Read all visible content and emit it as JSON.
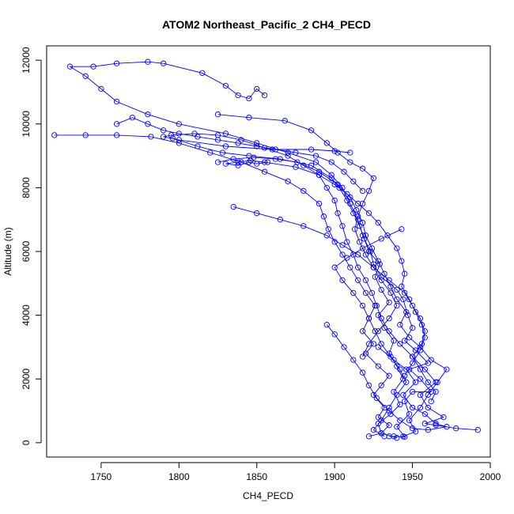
{
  "chart_data": {
    "type": "line",
    "title": "ATOM2 Northeast_Pacific_2 CH4_PECD",
    "xlabel": "CH4_PECD",
    "ylabel": "Altitude (m)",
    "xlim": [
      1715,
      2000
    ],
    "ylim": [
      -450,
      12450
    ],
    "xticks": [
      1750,
      1800,
      1850,
      1900,
      1950,
      2000
    ],
    "yticks": [
      0,
      2000,
      4000,
      6000,
      8000,
      10000,
      12000
    ],
    "grid": false,
    "legend": "none",
    "marker": "open-circle",
    "colors": {
      "series": "#0000ff",
      "axes": "#000000",
      "background": "#ffffff"
    },
    "series": [
      {
        "values": [
          [
            1935,
            200
          ],
          [
            1938,
            200
          ],
          [
            1945,
            180
          ],
          [
            1940,
            500
          ],
          [
            1948,
            900
          ],
          [
            1945,
            1300
          ],
          [
            1950,
            1600
          ],
          [
            1962,
            1600
          ],
          [
            1955,
            2000
          ],
          [
            1948,
            2300
          ],
          [
            1960,
            2500
          ],
          [
            1952,
            2900
          ],
          [
            1945,
            3200
          ],
          [
            1950,
            3600
          ],
          [
            1947,
            4000
          ],
          [
            1944,
            4500
          ],
          [
            1940,
            4800
          ],
          [
            1930,
            5200
          ],
          [
            1925,
            5600
          ],
          [
            1923,
            6000
          ],
          [
            1918,
            6500
          ],
          [
            1915,
            7000
          ],
          [
            1910,
            7500
          ],
          [
            1905,
            8000
          ],
          [
            1898,
            8400
          ],
          [
            1888,
            8800
          ],
          [
            1870,
            9100
          ],
          [
            1850,
            9400
          ],
          [
            1830,
            9700
          ],
          [
            1800,
            10000
          ],
          [
            1780,
            10300
          ],
          [
            1760,
            10700
          ],
          [
            1750,
            11100
          ],
          [
            1740,
            11500
          ],
          [
            1730,
            11800
          ],
          [
            1745,
            11800
          ],
          [
            1760,
            11900
          ],
          [
            1780,
            11950
          ],
          [
            1790,
            11900
          ],
          [
            1815,
            11600
          ],
          [
            1830,
            11200
          ],
          [
            1838,
            10900
          ],
          [
            1845,
            10800
          ],
          [
            1850,
            11100
          ],
          [
            1855,
            10900
          ]
        ]
      },
      {
        "values": [
          [
            1940,
            150
          ],
          [
            1930,
            300
          ],
          [
            1935,
            550
          ],
          [
            1928,
            800
          ],
          [
            1932,
            1100
          ],
          [
            1925,
            1500
          ],
          [
            1930,
            1800
          ],
          [
            1935,
            2100
          ],
          [
            1928,
            2400
          ],
          [
            1920,
            2800
          ],
          [
            1925,
            3100
          ],
          [
            1918,
            3500
          ],
          [
            1922,
            3900
          ],
          [
            1926,
            4300
          ],
          [
            1920,
            4700
          ],
          [
            1915,
            5100
          ],
          [
            1910,
            5500
          ],
          [
            1905,
            5900
          ],
          [
            1900,
            6300
          ],
          [
            1896,
            6700
          ],
          [
            1893,
            7100
          ],
          [
            1890,
            7500
          ],
          [
            1880,
            7900
          ],
          [
            1870,
            8200
          ],
          [
            1855,
            8500
          ],
          [
            1840,
            8800
          ],
          [
            1820,
            9100
          ],
          [
            1800,
            9400
          ],
          [
            1782,
            9600
          ],
          [
            1760,
            9650
          ],
          [
            1740,
            9650
          ],
          [
            1720,
            9650
          ]
        ]
      },
      {
        "values": [
          [
            1992,
            400
          ],
          [
            1978,
            450
          ],
          [
            1965,
            550
          ],
          [
            1958,
            600
          ],
          [
            1970,
            800
          ],
          [
            1960,
            1100
          ],
          [
            1955,
            1500
          ],
          [
            1965,
            1900
          ],
          [
            1958,
            2300
          ],
          [
            1950,
            2700
          ],
          [
            1942,
            3100
          ],
          [
            1935,
            3500
          ],
          [
            1930,
            3900
          ],
          [
            1927,
            4300
          ],
          [
            1924,
            4700
          ],
          [
            1920,
            5100
          ],
          [
            1915,
            5500
          ],
          [
            1912,
            5900
          ],
          [
            1908,
            6300
          ],
          [
            1905,
            6800
          ],
          [
            1902,
            7200
          ],
          [
            1900,
            7600
          ],
          [
            1895,
            8000
          ],
          [
            1890,
            8400
          ],
          [
            1880,
            8700
          ],
          [
            1870,
            9000
          ],
          [
            1855,
            9250
          ],
          [
            1840,
            9500
          ],
          [
            1825,
            9650
          ],
          [
            1810,
            9700
          ],
          [
            1795,
            9650
          ],
          [
            1790,
            9600
          ],
          [
            1800,
            9500
          ],
          [
            1830,
            9300
          ],
          [
            1860,
            9200
          ],
          [
            1885,
            9200
          ],
          [
            1900,
            9150
          ],
          [
            1910,
            9100
          ]
        ]
      },
      {
        "values": [
          [
            1922,
            200
          ],
          [
            1930,
            300
          ],
          [
            1928,
            600
          ],
          [
            1936,
            900
          ],
          [
            1942,
            1200
          ],
          [
            1938,
            1600
          ],
          [
            1944,
            2000
          ],
          [
            1940,
            2400
          ],
          [
            1935,
            2800
          ],
          [
            1938,
            3200
          ],
          [
            1932,
            3600
          ],
          [
            1928,
            4000
          ],
          [
            1935,
            4400
          ],
          [
            1930,
            4800
          ],
          [
            1926,
            5200
          ],
          [
            1929,
            5600
          ],
          [
            1922,
            6000
          ],
          [
            1919,
            6400
          ],
          [
            1916,
            6800
          ],
          [
            1912,
            7200
          ],
          [
            1908,
            7600
          ],
          [
            1903,
            8000
          ],
          [
            1898,
            8300
          ],
          [
            1885,
            8700
          ],
          [
            1865,
            8900
          ],
          [
            1845,
            9000
          ],
          [
            1828,
            9100
          ],
          [
            1812,
            9300
          ],
          [
            1796,
            9550
          ]
        ]
      },
      {
        "values": [
          [
            1944,
            200
          ],
          [
            1952,
            350
          ],
          [
            1948,
            700
          ],
          [
            1955,
            1100
          ],
          [
            1960,
            1500
          ],
          [
            1966,
            1900
          ],
          [
            1972,
            2300
          ],
          [
            1962,
            2600
          ],
          [
            1955,
            3000
          ],
          [
            1948,
            3300
          ],
          [
            1942,
            3700
          ],
          [
            1946,
            4100
          ],
          [
            1940,
            4500
          ],
          [
            1936,
            4900
          ],
          [
            1932,
            5300
          ],
          [
            1928,
            5700
          ],
          [
            1924,
            6100
          ],
          [
            1920,
            6500
          ],
          [
            1918,
            6900
          ],
          [
            1914,
            7300
          ],
          [
            1910,
            7700
          ],
          [
            1902,
            8100
          ],
          [
            1890,
            8500
          ],
          [
            1876,
            8800
          ],
          [
            1862,
            8900
          ],
          [
            1848,
            8950
          ],
          [
            1835,
            8900
          ],
          [
            1825,
            8800
          ]
        ]
      },
      {
        "values": [
          [
            1928,
            3000
          ],
          [
            1938,
            2600
          ],
          [
            1946,
            2300
          ],
          [
            1952,
            1900
          ],
          [
            1944,
            1500
          ],
          [
            1950,
            1100
          ],
          [
            1958,
            900
          ],
          [
            1965,
            600
          ],
          [
            1972,
            500
          ],
          [
            1960,
            400
          ],
          [
            1950,
            450
          ],
          [
            1942,
            700
          ],
          [
            1935,
            1000
          ],
          [
            1927,
            1400
          ],
          [
            1922,
            1800
          ],
          [
            1918,
            2200
          ],
          [
            1912,
            2600
          ],
          [
            1906,
            3000
          ],
          [
            1900,
            3400
          ],
          [
            1895,
            3700
          ]
        ]
      },
      {
        "values": [
          [
            1857,
            8800
          ],
          [
            1850,
            8750
          ],
          [
            1845,
            8800
          ],
          [
            1838,
            8700
          ],
          [
            1830,
            8750
          ],
          [
            1838,
            8800
          ],
          [
            1846,
            8850
          ],
          [
            1855,
            8800
          ],
          [
            1875,
            8650
          ],
          [
            1890,
            8400
          ],
          [
            1900,
            8100
          ],
          [
            1908,
            7800
          ],
          [
            1915,
            7500
          ],
          [
            1922,
            7200
          ],
          [
            1928,
            6900
          ],
          [
            1934,
            6500
          ],
          [
            1940,
            6100
          ],
          [
            1943,
            5700
          ],
          [
            1945,
            5300
          ],
          [
            1943,
            4900
          ],
          [
            1948,
            4500
          ],
          [
            1952,
            4100
          ],
          [
            1956,
            3700
          ],
          [
            1958,
            3300
          ],
          [
            1955,
            2900
          ],
          [
            1950,
            2500
          ],
          [
            1945,
            2100
          ]
        ]
      },
      {
        "values": [
          [
            1835,
            7400
          ],
          [
            1850,
            7200
          ],
          [
            1865,
            7000
          ],
          [
            1880,
            6800
          ],
          [
            1895,
            6500
          ],
          [
            1905,
            6200
          ],
          [
            1915,
            5900
          ],
          [
            1925,
            5500
          ],
          [
            1935,
            5100
          ],
          [
            1945,
            4700
          ],
          [
            1950,
            4300
          ],
          [
            1955,
            3900
          ],
          [
            1958,
            3500
          ],
          [
            1956,
            3100
          ],
          [
            1950,
            2700
          ],
          [
            1955,
            2300
          ],
          [
            1960,
            1900
          ],
          [
            1965,
            1600
          ],
          [
            1962,
            1300
          ]
        ]
      },
      {
        "values": [
          [
            1943,
            6700
          ],
          [
            1930,
            6400
          ],
          [
            1918,
            6100
          ],
          [
            1908,
            5800
          ],
          [
            1900,
            5500
          ],
          [
            1905,
            5100
          ],
          [
            1912,
            4700
          ],
          [
            1918,
            4300
          ],
          [
            1922,
            3900
          ],
          [
            1926,
            3500
          ],
          [
            1930,
            3100
          ],
          [
            1936,
            2700
          ],
          [
            1942,
            2300
          ],
          [
            1946,
            1900
          ],
          [
            1940,
            1500
          ],
          [
            1935,
            1100
          ],
          [
            1930,
            700
          ],
          [
            1925,
            400
          ],
          [
            1932,
            200
          ]
        ]
      },
      {
        "values": [
          [
            1825,
            10300
          ],
          [
            1845,
            10200
          ],
          [
            1868,
            10100
          ],
          [
            1885,
            9800
          ],
          [
            1895,
            9400
          ],
          [
            1902,
            9100
          ],
          [
            1910,
            8800
          ],
          [
            1918,
            8600
          ],
          [
            1925,
            8300
          ],
          [
            1922,
            7900
          ],
          [
            1918,
            7500
          ],
          [
            1915,
            7100
          ],
          [
            1913,
            6700
          ],
          [
            1916,
            6300
          ],
          [
            1920,
            5900
          ],
          [
            1925,
            5500
          ],
          [
            1930,
            5100
          ],
          [
            1936,
            4700
          ],
          [
            1940,
            4300
          ],
          [
            1935,
            3900
          ],
          [
            1928,
            3500
          ],
          [
            1922,
            3100
          ],
          [
            1918,
            2700
          ]
        ]
      },
      {
        "values": [
          [
            1760,
            10000
          ],
          [
            1770,
            10200
          ],
          [
            1780,
            10000
          ],
          [
            1790,
            9800
          ],
          [
            1800,
            9700
          ],
          [
            1812,
            9600
          ],
          [
            1825,
            9500
          ],
          [
            1838,
            9400
          ],
          [
            1850,
            9300
          ],
          [
            1862,
            9200
          ],
          [
            1875,
            9100
          ],
          [
            1888,
            9000
          ],
          [
            1898,
            8800
          ],
          [
            1906,
            8500
          ],
          [
            1912,
            8200
          ],
          [
            1918,
            7900
          ]
        ]
      }
    ]
  }
}
